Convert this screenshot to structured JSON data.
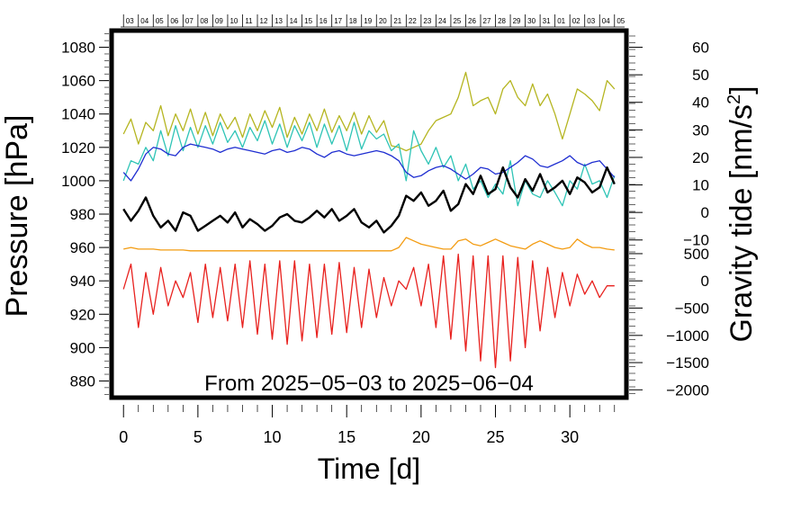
{
  "chart_data": {
    "type": "line",
    "annotation": "From 2025−05−03 to 2025−06−04",
    "xlabel": "Time [d]",
    "ylabel_left": "Pressure [hPa]",
    "ylabel_right_base": "Gravity tide [nm/s",
    "ylabel_right_sup": "2",
    "ylabel_right_tail": "]",
    "xlim": [
      -0.8,
      33.8
    ],
    "x_ticks": [
      "0",
      "5",
      "10",
      "15",
      "20",
      "25",
      "30"
    ],
    "x_tick_values": [
      0,
      5,
      10,
      15,
      20,
      25,
      30
    ],
    "left_axis": {
      "ylim": [
        870,
        1090
      ],
      "tick_values": [
        880,
        900,
        920,
        940,
        960,
        980,
        1000,
        1020,
        1040,
        1060,
        1080
      ],
      "tick_labels": [
        "880",
        "900",
        "920",
        "940",
        "960",
        "980",
        "1000",
        "1020",
        "1040",
        "1060",
        "1080"
      ]
    },
    "right_axis_upper": {
      "tick_values": [
        -10,
        0,
        10,
        20,
        30,
        40,
        50,
        60
      ],
      "tick_labels": [
        "−10",
        "0",
        "10",
        "20",
        "30",
        "40",
        "50",
        "60"
      ],
      "pressure_equivalent": [
        964.5,
        981.0,
        997.5,
        1014.0,
        1030.5,
        1047.0,
        1063.5,
        1080.0
      ]
    },
    "right_axis_lower": {
      "tick_values": [
        -2000,
        -1500,
        -1000,
        -500,
        0,
        500
      ],
      "tick_labels": [
        "−2000",
        "−1500",
        "−1000",
        "−500",
        "0",
        "500"
      ],
      "pressure_equivalent": [
        874.7,
        891.0,
        907.3,
        923.7,
        940.0,
        956.3
      ]
    },
    "date_ticks": [
      "03",
      "04",
      "05",
      "06",
      "07",
      "08",
      "09",
      "10",
      "11",
      "12",
      "13",
      "14",
      "15",
      "16",
      "17",
      "18",
      "19",
      "20",
      "21",
      "22",
      "23",
      "24",
      "25",
      "26",
      "27",
      "28",
      "29",
      "30",
      "31",
      "01",
      "02",
      "03",
      "04",
      "05"
    ],
    "date_tick_x": [
      0,
      1,
      2,
      3,
      4,
      5,
      6,
      7,
      8,
      9,
      10,
      11,
      12,
      13,
      14,
      15,
      16,
      17,
      18,
      19,
      20,
      21,
      22,
      23,
      24,
      25,
      26,
      27,
      28,
      29,
      30,
      31,
      32,
      33
    ],
    "series": [
      {
        "color": "#b5b520",
        "x": [
          0,
          0.5,
          1,
          1.5,
          2,
          2.5,
          3,
          3.5,
          4,
          4.5,
          5,
          5.5,
          6,
          6.5,
          7,
          7.5,
          8,
          8.5,
          9,
          9.5,
          10,
          10.5,
          11,
          11.5,
          12,
          12.5,
          13,
          13.5,
          14,
          14.5,
          15,
          15.5,
          16,
          16.5,
          17,
          17.5,
          18,
          18.5,
          19,
          19.5,
          20,
          20.5,
          21,
          21.5,
          22,
          22.5,
          23,
          23.5,
          24,
          24.5,
          25,
          25.5,
          26,
          26.5,
          27,
          27.5,
          28,
          28.5,
          29,
          29.5,
          30,
          30.5,
          31,
          31.5,
          32,
          32.5,
          33
        ],
        "values": [
          1028,
          1037,
          1022,
          1035,
          1030,
          1045,
          1027,
          1040,
          1030,
          1043,
          1028,
          1041,
          1027,
          1040,
          1031,
          1038,
          1026,
          1040,
          1030,
          1042,
          1032,
          1044,
          1026,
          1038,
          1028,
          1040,
          1030,
          1043,
          1029,
          1039,
          1030,
          1041,
          1028,
          1039,
          1029,
          1036,
          1021,
          1020,
          1018,
          1020,
          1022,
          1030,
          1036,
          1038,
          1040,
          1050,
          1065,
          1045,
          1048,
          1050,
          1040,
          1055,
          1060,
          1050,
          1045,
          1058,
          1045,
          1052,
          1040,
          1025,
          1040,
          1055,
          1052,
          1048,
          1042,
          1060,
          1055
        ]
      },
      {
        "color": "#2ec4b6",
        "x": [
          0,
          0.5,
          1,
          1.5,
          2,
          2.5,
          3,
          3.5,
          4,
          4.5,
          5,
          5.5,
          6,
          6.5,
          7,
          7.5,
          8,
          8.5,
          9,
          9.5,
          10,
          10.5,
          11,
          11.5,
          12,
          12.5,
          13,
          13.5,
          14,
          14.5,
          15,
          15.5,
          16,
          16.5,
          17,
          17.5,
          18,
          18.5,
          19,
          19.5,
          20,
          20.5,
          21,
          21.5,
          22,
          22.5,
          23,
          23.5,
          24,
          24.5,
          25,
          25.5,
          26,
          26.5,
          27,
          27.5,
          28,
          28.5,
          29,
          29.5,
          30,
          30.5,
          31,
          31.5,
          32,
          32.5,
          33
        ],
        "values": [
          1000,
          1012,
          1010,
          1020,
          1012,
          1030,
          1015,
          1033,
          1018,
          1032,
          1020,
          1033,
          1022,
          1035,
          1023,
          1030,
          1020,
          1032,
          1024,
          1036,
          1022,
          1034,
          1020,
          1033,
          1024,
          1035,
          1020,
          1034,
          1022,
          1033,
          1018,
          1035,
          1019,
          1030,
          1025,
          1028,
          1018,
          1022,
          1000,
          1030,
          1018,
          1010,
          1020,
          1008,
          1015,
          1000,
          1010,
          995,
          1000,
          990,
          998,
          992,
          1012,
          985,
          1000,
          992,
          990,
          1000,
          993,
          985,
          1000,
          995,
          1010,
          998,
          1000,
          990,
          1003
        ]
      },
      {
        "color": "#1f2ed1",
        "x": [
          0,
          0.5,
          1,
          1.5,
          2,
          2.5,
          3,
          3.5,
          4,
          4.5,
          5,
          5.5,
          6,
          6.5,
          7,
          7.5,
          8,
          8.5,
          9,
          9.5,
          10,
          10.5,
          11,
          11.5,
          12,
          12.5,
          13,
          13.5,
          14,
          14.5,
          15,
          15.5,
          16,
          16.5,
          17,
          17.5,
          18,
          18.5,
          19,
          19.5,
          20,
          20.5,
          21,
          21.5,
          22,
          22.5,
          23,
          23.5,
          24,
          24.5,
          25,
          25.5,
          26,
          26.5,
          27,
          27.5,
          28,
          28.5,
          29,
          29.5,
          30,
          30.5,
          31,
          31.5,
          32,
          32.5,
          33
        ],
        "values": [
          1005,
          1000,
          1007,
          1016,
          1020,
          1019,
          1016,
          1015,
          1020,
          1022,
          1021,
          1020,
          1019,
          1017,
          1019,
          1020,
          1019,
          1018,
          1017,
          1016,
          1018,
          1019,
          1017,
          1018,
          1020,
          1019,
          1016,
          1014,
          1017,
          1018,
          1016,
          1015,
          1016,
          1017,
          1018,
          1017,
          1015,
          1012,
          1005,
          1002,
          1003,
          1006,
          1008,
          1009,
          1007,
          1004,
          1001,
          1004,
          1008,
          1007,
          1004,
          1005,
          1008,
          1011,
          1015,
          1013,
          1009,
          1008,
          1010,
          1012,
          1015,
          1011,
          1009,
          1011,
          1012,
          1007,
          1002
        ]
      },
      {
        "color": "#000000",
        "x": [
          0,
          0.5,
          1,
          1.5,
          2,
          2.5,
          3,
          3.5,
          4,
          4.5,
          5,
          5.5,
          6,
          6.5,
          7,
          7.5,
          8,
          8.5,
          9,
          9.5,
          10,
          10.5,
          11,
          11.5,
          12,
          12.5,
          13,
          13.5,
          14,
          14.5,
          15,
          15.5,
          16,
          16.5,
          17,
          17.5,
          18,
          18.5,
          19,
          19.5,
          20,
          20.5,
          21,
          21.5,
          22,
          22.5,
          23,
          23.5,
          24,
          24.5,
          25,
          25.5,
          26,
          26.5,
          27,
          27.5,
          28,
          28.5,
          29,
          29.5,
          30,
          30.5,
          31,
          31.5,
          32,
          32.5,
          33
        ],
        "values": [
          983,
          976,
          982,
          990,
          979,
          972,
          976,
          970,
          981,
          979,
          970,
          973,
          976,
          979,
          975,
          981,
          972,
          977,
          974,
          970,
          973,
          978,
          980,
          976,
          975,
          978,
          982,
          978,
          983,
          976,
          979,
          983,
          975,
          972,
          976,
          969,
          973,
          979,
          991,
          988,
          993,
          985,
          988,
          994,
          982,
          986,
          998,
          992,
          1003,
          992,
          995,
          1008,
          996,
          990,
          1001,
          994,
          1004,
          993,
          996,
          1000,
          992,
          1002,
          999,
          993,
          996,
          1008,
          998
        ]
      },
      {
        "color": "#f39c12",
        "x": [
          0,
          0.5,
          1,
          1.5,
          2,
          2.5,
          3,
          3.5,
          4,
          4.5,
          5,
          5.5,
          6,
          6.5,
          7,
          7.5,
          8,
          8.5,
          9,
          9.5,
          10,
          10.5,
          11,
          11.5,
          12,
          12.5,
          13,
          13.5,
          14,
          14.5,
          15,
          15.5,
          16,
          16.5,
          17,
          17.5,
          18,
          18.5,
          19,
          19.5,
          20,
          20.5,
          21,
          21.5,
          22,
          22.5,
          23,
          23.5,
          24,
          24.5,
          25,
          25.5,
          26,
          26.5,
          27,
          27.5,
          28,
          28.5,
          29,
          29.5,
          30,
          30.5,
          31,
          31.5,
          32,
          32.5,
          33
        ],
        "values": [
          959,
          960,
          959,
          959,
          959,
          958.5,
          958.5,
          958.5,
          958.5,
          958,
          958,
          958,
          958,
          958,
          958,
          958,
          958,
          958,
          958,
          958,
          958,
          958,
          958,
          958,
          958,
          958,
          958,
          958,
          958,
          958,
          958,
          958,
          958,
          958,
          958,
          958,
          958,
          960,
          966,
          964,
          962,
          961,
          960,
          959,
          959,
          964,
          965,
          962,
          961,
          963,
          965,
          963,
          961,
          960,
          959,
          962,
          964,
          962,
          960,
          959,
          960,
          965,
          962,
          960,
          960,
          959,
          958.5
        ]
      },
      {
        "color": "#e8211e",
        "x": [
          0,
          0.5,
          1,
          1.5,
          2,
          2.5,
          3,
          3.5,
          4,
          4.5,
          5,
          5.5,
          6,
          6.5,
          7,
          7.5,
          8,
          8.5,
          9,
          9.5,
          10,
          10.5,
          11,
          11.5,
          12,
          12.5,
          13,
          13.5,
          14,
          14.5,
          15,
          15.5,
          16,
          16.5,
          17,
          17.5,
          18,
          18.5,
          19,
          19.5,
          20,
          20.5,
          21,
          21.5,
          22,
          22.5,
          23,
          23.5,
          24,
          24.5,
          25,
          25.5,
          26,
          26.5,
          27,
          27.5,
          28,
          28.5,
          29,
          29.5,
          30,
          30.5,
          31,
          31.5,
          32,
          32.5,
          33
        ],
        "values": [
          935,
          950,
          912,
          945,
          920,
          948,
          925,
          940,
          930,
          945,
          915,
          950,
          918,
          948,
          916,
          950,
          912,
          952,
          908,
          950,
          905,
          952,
          902,
          952,
          904,
          950,
          906,
          950,
          908,
          951,
          909,
          948,
          912,
          947,
          918,
          942,
          925,
          940,
          935,
          948,
          925,
          950,
          912,
          955,
          905,
          956,
          898,
          955,
          892,
          955,
          888,
          955,
          892,
          954,
          900,
          952,
          910,
          948,
          918,
          945,
          925,
          944,
          932,
          940,
          930,
          937,
          937
        ]
      }
    ]
  }
}
